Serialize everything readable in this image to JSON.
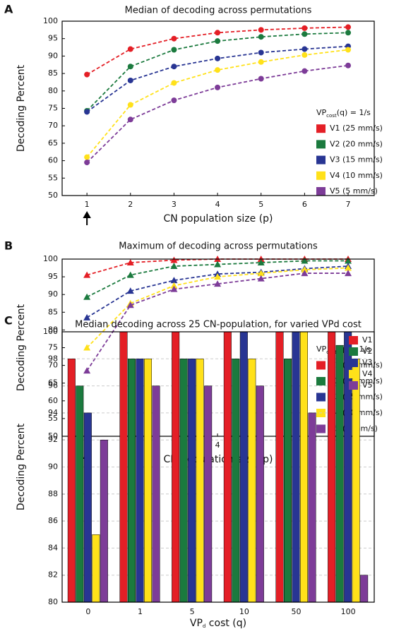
{
  "chart_data": [
    {
      "type": "line",
      "panel": "A",
      "title": "Median of decoding across permutations",
      "x_label": "CN population size (p)",
      "y_label": "Decoding Percent",
      "marker": "circle",
      "legend_title": {
        "main": "VP",
        "sub": "cost",
        "rest": "(q) = 1/s"
      },
      "x": [
        1,
        2,
        3,
        4,
        5,
        6,
        7
      ],
      "xlim": [
        0.43,
        7.6
      ],
      "xticks": [
        1,
        2,
        3,
        4,
        5,
        6,
        7
      ],
      "ylim": [
        50,
        100
      ],
      "yticks": [
        50,
        55,
        60,
        65,
        70,
        75,
        80,
        85,
        90,
        95,
        100
      ],
      "grid": false,
      "series": [
        {
          "name": "V1 (25 mm/s)",
          "color": "#e41f26",
          "values": [
            84.7,
            92,
            95,
            96.7,
            97.5,
            98,
            98.3
          ]
        },
        {
          "name": "V2 (20 mm/s)",
          "color": "#1b7a3e",
          "values": [
            74.3,
            87,
            91.8,
            94.3,
            95.5,
            96.3,
            96.7
          ]
        },
        {
          "name": "V3 (15 mm/s)",
          "color": "#283593",
          "values": [
            74,
            83,
            87,
            89.3,
            91,
            92,
            92.8
          ]
        },
        {
          "name": "V4 (10 mm/s)",
          "color": "#ffe11a",
          "values": [
            61,
            76,
            82.3,
            86,
            88.3,
            90.3,
            91.8
          ]
        },
        {
          "name": "V5 (5 mm/s)",
          "color": "#7d3c98",
          "values": [
            59.5,
            71.8,
            77.3,
            81,
            83.5,
            85.7,
            87.3
          ]
        }
      ]
    },
    {
      "type": "line",
      "panel": "B",
      "title": "Maximum of decoding across permutations",
      "x_label": "CN population size (p)",
      "y_label": "Decoding Percent",
      "marker": "triangle",
      "legend_title": {
        "main": "VP",
        "sub": "cost",
        "rest": "(q) = 1/s"
      },
      "x": [
        1,
        2,
        3,
        4,
        5,
        6,
        7
      ],
      "xlim": [
        0.43,
        7.6
      ],
      "xticks": [
        1,
        2,
        3,
        4,
        5,
        6,
        7
      ],
      "ylim": [
        50,
        100
      ],
      "yticks": [
        50,
        55,
        60,
        65,
        70,
        75,
        80,
        85,
        90,
        95,
        100
      ],
      "grid": false,
      "series": [
        {
          "name": "V1 (25 mm/s)",
          "color": "#e41f26",
          "values": [
            95.5,
            99,
            99.7,
            100,
            100,
            100,
            100
          ]
        },
        {
          "name": "V2 (20 mm/s)",
          "color": "#1b7a3e",
          "values": [
            89.3,
            95.5,
            98,
            98.5,
            99,
            99.5,
            99.5
          ]
        },
        {
          "name": "V3 (15 mm/s)",
          "color": "#283593",
          "values": [
            83.5,
            91,
            94,
            95.8,
            96.3,
            97.3,
            98
          ]
        },
        {
          "name": "V4 (10 mm/s)",
          "color": "#ffe11a",
          "values": [
            75,
            87.5,
            92.5,
            95,
            96,
            97,
            97.5
          ]
        },
        {
          "name": "V5 (5 mm/s)",
          "color": "#7d3c98",
          "values": [
            68.5,
            87,
            91.5,
            93,
            94.5,
            96,
            96
          ]
        }
      ]
    },
    {
      "type": "bar",
      "panel": "C",
      "title": "Median decoding across 25 CN-population, for varied VPd cost",
      "x_label": {
        "main": "VP",
        "sub": "d",
        "rest": " cost (q)"
      },
      "y_label": "Decoding Percent",
      "categories": [
        "0",
        "1",
        "5",
        "10",
        "50",
        "100"
      ],
      "ylim": [
        80,
        100
      ],
      "yticks": [
        80,
        82,
        84,
        86,
        88,
        90,
        92,
        94,
        96,
        98,
        100
      ],
      "grid": true,
      "series": [
        {
          "name": "V1",
          "color": "#e41f26",
          "values": [
            98,
            100,
            100,
            100,
            100,
            100
          ]
        },
        {
          "name": "V2",
          "color": "#1b7a3e",
          "values": [
            96,
            98,
            98,
            98,
            98,
            99
          ]
        },
        {
          "name": "V3",
          "color": "#283593",
          "values": [
            94,
            98,
            98,
            100,
            100,
            100
          ]
        },
        {
          "name": "V4",
          "color": "#ffe11a",
          "values": [
            85,
            98,
            98,
            98,
            100,
            98
          ]
        },
        {
          "name": "V5",
          "color": "#7d3c98",
          "values": [
            92,
            96,
            96,
            96,
            94,
            82
          ]
        }
      ]
    }
  ]
}
